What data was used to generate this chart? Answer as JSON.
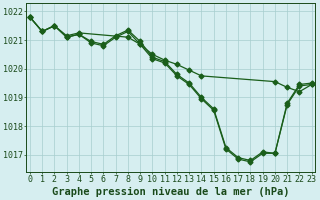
{
  "title": "Graphe pression niveau de la mer (hPa)",
  "hours": [
    0,
    1,
    2,
    3,
    4,
    5,
    6,
    7,
    8,
    9,
    10,
    11,
    12,
    13,
    14,
    15,
    16,
    17,
    18,
    19,
    20,
    21,
    22,
    23
  ],
  "line_main": [
    1021.8,
    1021.3,
    1021.5,
    1021.1,
    1021.2,
    1020.9,
    1020.8,
    1021.1,
    1021.3,
    1020.85,
    1020.35,
    1020.2,
    1019.75,
    1019.45,
    1018.95,
    1018.55,
    1017.2,
    1016.85,
    1016.75,
    1017.05,
    1017.05,
    1018.75,
    1019.4,
    1019.45
  ],
  "line_secondary": [
    1021.8,
    1021.3,
    1021.5,
    1021.1,
    1021.2,
    1020.95,
    1020.85,
    1021.15,
    1021.35,
    1020.95,
    1020.4,
    1020.25,
    1019.8,
    1019.5,
    1019.0,
    1018.6,
    1017.25,
    1016.9,
    1016.8,
    1017.1,
    1017.05,
    1018.8,
    1019.45,
    1019.5
  ],
  "line_trend_x": [
    0,
    1,
    2,
    3,
    4,
    8,
    9,
    10,
    11,
    12,
    13,
    14,
    20,
    21,
    22,
    23
  ],
  "line_trend_y": [
    1021.8,
    1021.3,
    1021.5,
    1021.15,
    1021.25,
    1021.1,
    1020.85,
    1020.5,
    1020.3,
    1020.15,
    1019.95,
    1019.75,
    1019.55,
    1019.35,
    1019.2,
    1019.45
  ],
  "ylim": [
    1016.4,
    1022.3
  ],
  "yticks": [
    1017,
    1018,
    1019,
    1020,
    1021,
    1022
  ],
  "xlim": [
    -0.3,
    23.3
  ],
  "bg_color": "#d6eef0",
  "grid_color": "#a8cece",
  "line_color": "#1a5e1a",
  "marker_size": 2.5,
  "line_width": 0.9,
  "title_fontsize": 7.5,
  "tick_fontsize": 6.0
}
